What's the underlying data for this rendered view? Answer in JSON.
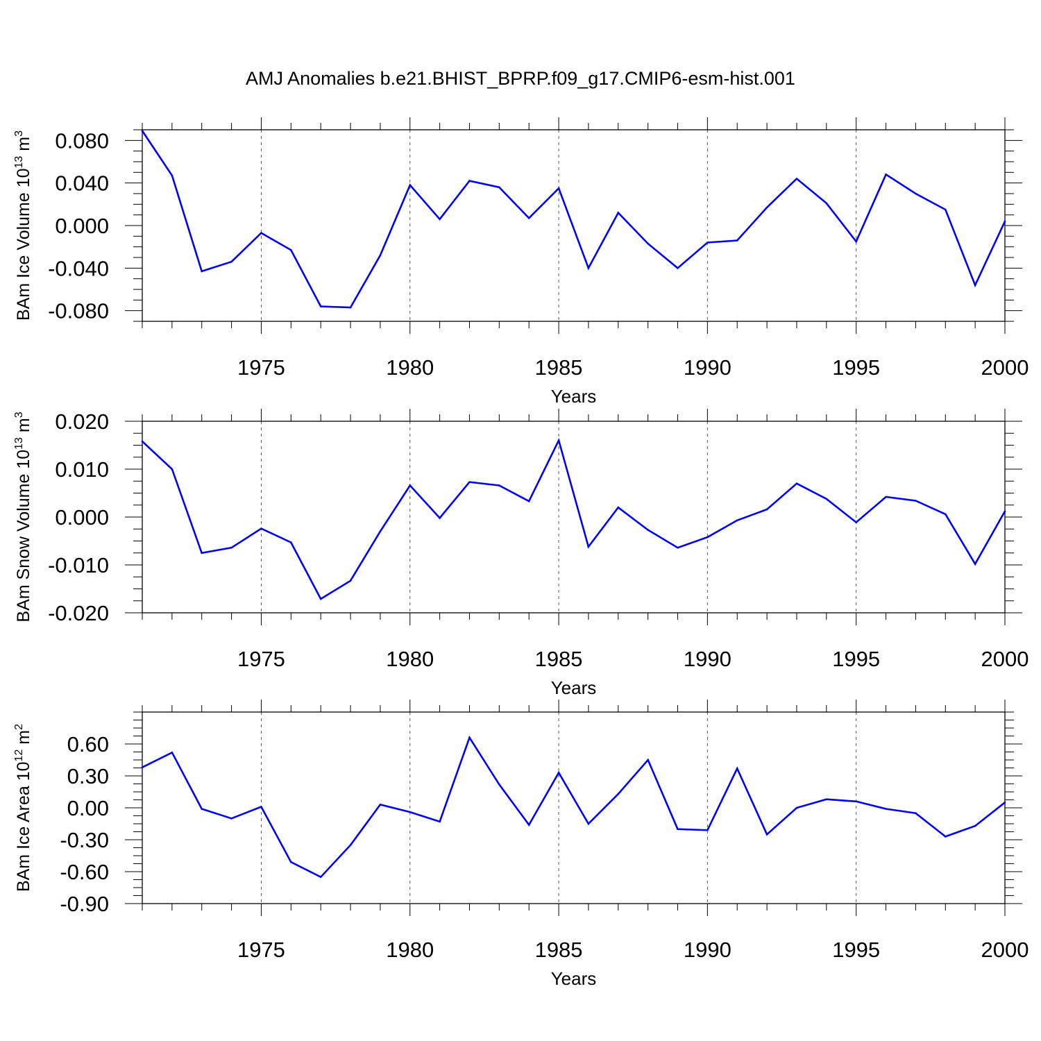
{
  "title": "AMJ Anomalies b.e21.BHIST_BPRP.f09_g17.CMIP6-esm-hist.001",
  "colors": {
    "line": "#0000ff",
    "axis": "#000000",
    "grid": "#555555"
  },
  "chart_data": [
    {
      "type": "line",
      "xlabel": "Years",
      "ylabel_main": "BAm Ice Volume 10",
      "ylabel_exp": "13",
      "ylabel_unit": " m",
      "ylabel_unit_exp": "3",
      "xlim": [
        1971,
        2000
      ],
      "ylim": [
        -0.09,
        0.09
      ],
      "yticks": [
        -0.08,
        -0.04,
        0.0,
        0.04,
        0.08
      ],
      "ytick_labels": [
        "-0.080",
        "-0.040",
        "0.000",
        "0.040",
        "0.080"
      ],
      "xticks": [
        1975,
        1980,
        1985,
        1990,
        1995,
        2000
      ],
      "xtick_labels": [
        "1975",
        "1980",
        "1985",
        "1990",
        "1995",
        "2000"
      ],
      "grid": "vertical dashed at major x ticks",
      "series": [
        {
          "x": [
            1971,
            1972,
            1973,
            1974,
            1975,
            1976,
            1977,
            1978,
            1979,
            1980,
            1981,
            1982,
            1983,
            1984,
            1985,
            1986,
            1987,
            1988,
            1989,
            1990,
            1991,
            1992,
            1993,
            1994,
            1995,
            1996,
            1997,
            1998,
            1999,
            2000
          ],
          "values": [
            0.089,
            0.047,
            -0.043,
            -0.034,
            -0.007,
            -0.023,
            -0.076,
            -0.077,
            -0.028,
            0.038,
            0.006,
            0.042,
            0.036,
            0.007,
            0.035,
            -0.04,
            0.012,
            -0.017,
            -0.04,
            -0.016,
            -0.014,
            0.017,
            0.044,
            0.021,
            -0.015,
            0.048,
            0.03,
            0.015,
            -0.056,
            0.004
          ]
        }
      ]
    },
    {
      "type": "line",
      "xlabel": "Years",
      "ylabel_main": "BAm Snow Volume 10",
      "ylabel_exp": "13",
      "ylabel_unit": " m",
      "ylabel_unit_exp": "3",
      "xlim": [
        1971,
        2000
      ],
      "ylim": [
        -0.02,
        0.02
      ],
      "yticks": [
        -0.02,
        -0.01,
        0.0,
        0.01,
        0.02
      ],
      "ytick_labels": [
        "-0.020",
        "-0.010",
        "0.000",
        "0.010",
        "0.020"
      ],
      "xticks": [
        1975,
        1980,
        1985,
        1990,
        1995,
        2000
      ],
      "xtick_labels": [
        "1975",
        "1980",
        "1985",
        "1990",
        "1995",
        "2000"
      ],
      "grid": "vertical dashed at major x ticks",
      "series": [
        {
          "x": [
            1971,
            1972,
            1973,
            1974,
            1975,
            1976,
            1977,
            1978,
            1979,
            1980,
            1981,
            1982,
            1983,
            1984,
            1985,
            1986,
            1987,
            1988,
            1989,
            1990,
            1991,
            1992,
            1993,
            1994,
            1995,
            1996,
            1997,
            1998,
            1999,
            2000
          ],
          "values": [
            0.0158,
            0.01,
            -0.0075,
            -0.0064,
            -0.0024,
            -0.0053,
            -0.0171,
            -0.0133,
            -0.003,
            0.0066,
            -0.0002,
            0.0073,
            0.0066,
            0.0033,
            0.016,
            -0.0062,
            0.002,
            -0.0027,
            -0.0064,
            -0.0042,
            -0.0007,
            0.0016,
            0.007,
            0.0038,
            -0.0011,
            0.0042,
            0.0034,
            0.0006,
            -0.0098,
            0.0012
          ]
        }
      ]
    },
    {
      "type": "line",
      "xlabel": "Years",
      "ylabel_main": "BAm Ice Area 10",
      "ylabel_exp": "12",
      "ylabel_unit": " m",
      "ylabel_unit_exp": "2",
      "xlim": [
        1971,
        2000
      ],
      "ylim": [
        -0.9,
        0.9
      ],
      "yticks": [
        -0.9,
        -0.6,
        -0.3,
        0.0,
        0.3,
        0.6
      ],
      "ytick_labels": [
        "-0.90",
        "-0.60",
        "-0.30",
        "0.00",
        "0.30",
        "0.60"
      ],
      "xticks": [
        1975,
        1980,
        1985,
        1990,
        1995,
        2000
      ],
      "xtick_labels": [
        "1975",
        "1980",
        "1985",
        "1990",
        "1995",
        "2000"
      ],
      "grid": "vertical dashed at major x ticks",
      "series": [
        {
          "x": [
            1971,
            1972,
            1973,
            1974,
            1975,
            1976,
            1977,
            1978,
            1979,
            1980,
            1981,
            1982,
            1983,
            1984,
            1985,
            1986,
            1987,
            1988,
            1989,
            1990,
            1991,
            1992,
            1993,
            1994,
            1995,
            1996,
            1997,
            1998,
            1999,
            2000
          ],
          "values": [
            0.38,
            0.52,
            -0.01,
            -0.1,
            0.01,
            -0.51,
            -0.65,
            -0.35,
            0.03,
            -0.04,
            -0.13,
            0.66,
            0.22,
            -0.16,
            0.33,
            -0.15,
            0.13,
            0.45,
            -0.2,
            -0.21,
            0.37,
            -0.25,
            0.0,
            0.08,
            0.06,
            -0.01,
            -0.05,
            -0.27,
            -0.17,
            0.05
          ]
        }
      ]
    }
  ]
}
